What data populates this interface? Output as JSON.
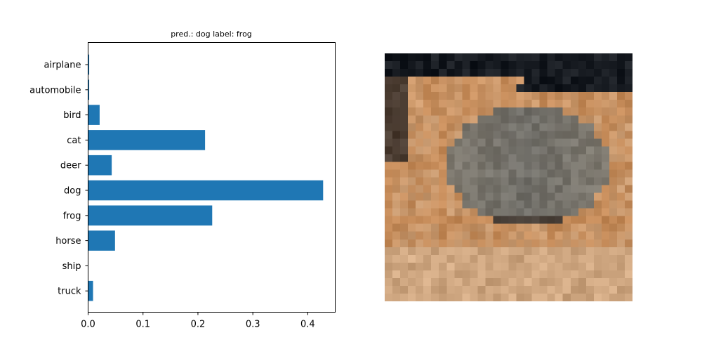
{
  "chart_data": {
    "type": "bar",
    "orientation": "horizontal",
    "title": "pred.: dog   label: frog",
    "categories": [
      "airplane",
      "automobile",
      "bird",
      "cat",
      "deer",
      "dog",
      "frog",
      "horse",
      "ship",
      "truck"
    ],
    "values": [
      0.002,
      0.002,
      0.021,
      0.213,
      0.043,
      0.428,
      0.226,
      0.049,
      0.0005,
      0.009
    ],
    "xlim": [
      0,
      0.45
    ],
    "xticks": [
      "0.0",
      "0.1",
      "0.2",
      "0.3",
      "0.4"
    ],
    "xtick_values": [
      0,
      0.1,
      0.2,
      0.3,
      0.4
    ],
    "xlabel": "",
    "ylabel": "",
    "grid": false,
    "colors": {
      "bar": "#1f77b4",
      "axis": "#000000",
      "background": "#ffffff"
    }
  },
  "image_panel": {
    "description_icon": "pixelated-frog-image"
  }
}
